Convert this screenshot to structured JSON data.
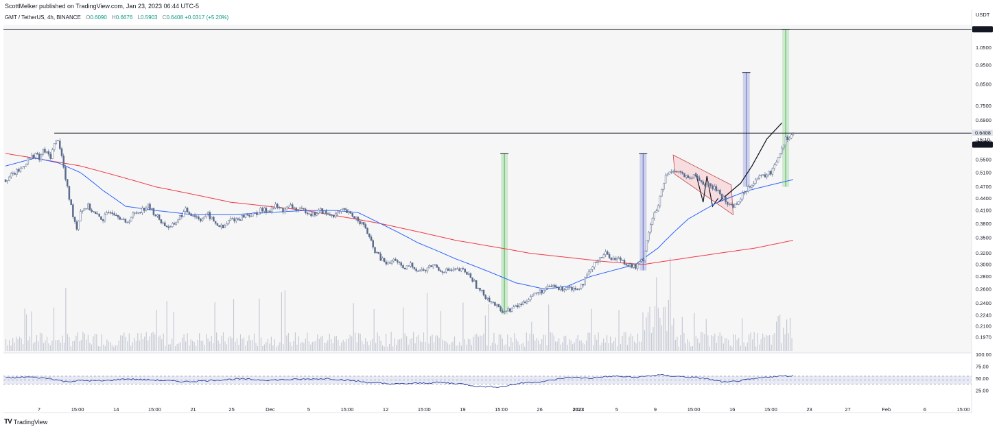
{
  "header": {
    "publisher_line": "ScottMelker published on TradingView.com, Jan 23, 2023 06:44 UTC-5",
    "symbol": "GMT / TetherUS, 4h, BINANCE",
    "ohlc": [
      {
        "k": "O",
        "v": "0.6090"
      },
      {
        "k": "H",
        "v": "0.6676"
      },
      {
        "k": "L",
        "v": "0.5903"
      },
      {
        "k": "C",
        "v": "0.6408"
      }
    ],
    "change": "+0.0317 (+5.20%)",
    "currency": "USDT"
  },
  "footer": {
    "logo_glyph": "TV",
    "brand": "TradingView"
  },
  "colors": {
    "up": "#089981",
    "candle": "#5b6b8c",
    "ma_fast": "#2962ff",
    "ma_slow": "#f23645",
    "volume": "#b2b8c8",
    "rsi": "#2a3f9d",
    "rsi_band": "#e8ebf6",
    "green_box": "#c8e6c9",
    "blue_box": "#c5cae9",
    "flag": "#f8d7da"
  },
  "chart_data": {
    "type": "candlestick",
    "title": "GMT / TetherUS, 4h, BINANCE",
    "y_axis": {
      "unit": "USDT",
      "scale": "log",
      "ticks": [
        "1.0500",
        "0.9500",
        "0.8500",
        "0.7500",
        "0.6900",
        "0.6100",
        "0.5500",
        "0.5100",
        "0.4700",
        "0.4400",
        "0.4100",
        "0.3800",
        "0.3500",
        "0.3200",
        "0.3000",
        "0.2800",
        "0.2600",
        "0.2400",
        "0.2240",
        "0.2100",
        "0.1970"
      ],
      "range": [
        0.188,
        1.19
      ]
    },
    "x_axis": {
      "ticks": [
        "7",
        "15:00",
        "14",
        "15:00",
        "21",
        "25",
        "Dec",
        "5",
        "15:00",
        "12",
        "15:00",
        "19",
        "15:00",
        "26",
        "2023",
        "5",
        "9",
        "15:00",
        "16",
        "15:00",
        "23",
        "27",
        "Feb",
        "6",
        "15:00"
      ]
    },
    "price_labels": [
      {
        "value": 1.1651,
        "text": "1.1651",
        "style": "black"
      },
      {
        "value": 0.6408,
        "text": "0.6408",
        "style": "light"
      },
      {
        "value": 0.6379,
        "text": "0.6379",
        "style": "black"
      }
    ],
    "countdown": "15:10",
    "horizontal_lines": [
      1.1651,
      0.6408
    ],
    "close_path": [
      [
        0,
        0.49
      ],
      [
        4,
        0.52
      ],
      [
        6,
        0.55
      ],
      [
        8,
        0.57
      ],
      [
        9,
        0.55
      ],
      [
        10,
        0.58
      ],
      [
        11,
        0.57
      ],
      [
        12,
        0.56
      ],
      [
        13,
        0.6
      ],
      [
        14,
        0.62
      ],
      [
        15,
        0.56
      ],
      [
        16,
        0.49
      ],
      [
        17,
        0.44
      ],
      [
        18,
        0.4
      ],
      [
        19,
        0.37
      ],
      [
        20,
        0.41
      ],
      [
        22,
        0.42
      ],
      [
        24,
        0.4
      ],
      [
        26,
        0.39
      ],
      [
        28,
        0.41
      ],
      [
        30,
        0.4
      ],
      [
        32,
        0.38
      ],
      [
        34,
        0.4
      ],
      [
        36,
        0.41
      ],
      [
        38,
        0.42
      ],
      [
        40,
        0.4
      ],
      [
        42,
        0.38
      ],
      [
        44,
        0.37
      ],
      [
        46,
        0.39
      ],
      [
        48,
        0.41
      ],
      [
        50,
        0.4
      ],
      [
        52,
        0.39
      ],
      [
        54,
        0.4
      ],
      [
        56,
        0.38
      ],
      [
        58,
        0.37
      ],
      [
        60,
        0.39
      ],
      [
        62,
        0.39
      ],
      [
        64,
        0.4
      ],
      [
        66,
        0.4
      ],
      [
        68,
        0.41
      ],
      [
        70,
        0.41
      ],
      [
        72,
        0.42
      ],
      [
        74,
        0.41
      ],
      [
        76,
        0.42
      ],
      [
        78,
        0.41
      ],
      [
        80,
        0.41
      ],
      [
        82,
        0.4
      ],
      [
        84,
        0.41
      ],
      [
        86,
        0.4
      ],
      [
        88,
        0.4
      ],
      [
        90,
        0.41
      ],
      [
        92,
        0.4
      ],
      [
        94,
        0.39
      ],
      [
        96,
        0.37
      ],
      [
        98,
        0.33
      ],
      [
        100,
        0.31
      ],
      [
        102,
        0.3
      ],
      [
        104,
        0.31
      ],
      [
        106,
        0.29
      ],
      [
        108,
        0.3
      ],
      [
        110,
        0.29
      ],
      [
        112,
        0.29
      ],
      [
        114,
        0.3
      ],
      [
        116,
        0.29
      ],
      [
        118,
        0.29
      ],
      [
        120,
        0.29
      ],
      [
        122,
        0.29
      ],
      [
        124,
        0.28
      ],
      [
        126,
        0.26
      ],
      [
        128,
        0.25
      ],
      [
        130,
        0.24
      ],
      [
        132,
        0.23
      ],
      [
        134,
        0.23
      ],
      [
        136,
        0.235
      ],
      [
        138,
        0.24
      ],
      [
        140,
        0.25
      ],
      [
        142,
        0.255
      ],
      [
        144,
        0.26
      ],
      [
        146,
        0.265
      ],
      [
        148,
        0.26
      ],
      [
        150,
        0.265
      ],
      [
        152,
        0.26
      ],
      [
        154,
        0.27
      ],
      [
        156,
        0.29
      ],
      [
        158,
        0.31
      ],
      [
        160,
        0.32
      ],
      [
        162,
        0.31
      ],
      [
        164,
        0.31
      ],
      [
        166,
        0.3
      ],
      [
        168,
        0.295
      ],
      [
        170,
        0.31
      ],
      [
        172,
        0.38
      ],
      [
        174,
        0.42
      ],
      [
        176,
        0.5
      ],
      [
        178,
        0.52
      ],
      [
        180,
        0.51
      ],
      [
        182,
        0.49
      ],
      [
        184,
        0.5
      ],
      [
        186,
        0.48
      ],
      [
        188,
        0.47
      ],
      [
        190,
        0.46
      ],
      [
        192,
        0.43
      ],
      [
        194,
        0.42
      ],
      [
        196,
        0.44
      ],
      [
        198,
        0.47
      ],
      [
        200,
        0.49
      ],
      [
        202,
        0.5
      ],
      [
        204,
        0.51
      ],
      [
        206,
        0.56
      ],
      [
        208,
        0.62
      ],
      [
        210,
        0.64
      ]
    ],
    "ma_fast_path": [
      [
        0,
        0.53
      ],
      [
        8,
        0.555
      ],
      [
        14,
        0.54
      ],
      [
        20,
        0.51
      ],
      [
        26,
        0.46
      ],
      [
        32,
        0.42
      ],
      [
        40,
        0.41
      ],
      [
        50,
        0.4
      ],
      [
        60,
        0.4
      ],
      [
        70,
        0.405
      ],
      [
        80,
        0.41
      ],
      [
        88,
        0.41
      ],
      [
        94,
        0.405
      ],
      [
        100,
        0.38
      ],
      [
        110,
        0.34
      ],
      [
        120,
        0.31
      ],
      [
        130,
        0.285
      ],
      [
        136,
        0.27
      ],
      [
        144,
        0.26
      ],
      [
        150,
        0.265
      ],
      [
        156,
        0.28
      ],
      [
        162,
        0.29
      ],
      [
        168,
        0.3
      ],
      [
        174,
        0.33
      ],
      [
        182,
        0.39
      ],
      [
        190,
        0.43
      ],
      [
        198,
        0.46
      ],
      [
        206,
        0.48
      ],
      [
        210,
        0.49
      ]
    ],
    "ma_slow_path": [
      [
        0,
        0.57
      ],
      [
        20,
        0.53
      ],
      [
        40,
        0.47
      ],
      [
        60,
        0.43
      ],
      [
        80,
        0.41
      ],
      [
        100,
        0.38
      ],
      [
        120,
        0.345
      ],
      [
        140,
        0.32
      ],
      [
        160,
        0.305
      ],
      [
        170,
        0.3
      ],
      [
        180,
        0.31
      ],
      [
        190,
        0.32
      ],
      [
        200,
        0.33
      ],
      [
        210,
        0.345
      ]
    ],
    "rsi": {
      "levels": [
        "100.00",
        "75.00",
        "50.00",
        "25.00"
      ],
      "band": [
        30,
        70
      ],
      "path": [
        [
          0,
          60
        ],
        [
          6,
          66
        ],
        [
          12,
          58
        ],
        [
          16,
          42
        ],
        [
          20,
          48
        ],
        [
          26,
          46
        ],
        [
          32,
          56
        ],
        [
          40,
          50
        ],
        [
          48,
          42
        ],
        [
          54,
          48
        ],
        [
          62,
          56
        ],
        [
          70,
          50
        ],
        [
          78,
          54
        ],
        [
          86,
          58
        ],
        [
          92,
          48
        ],
        [
          98,
          36
        ],
        [
          104,
          30
        ],
        [
          110,
          34
        ],
        [
          116,
          38
        ],
        [
          122,
          30
        ],
        [
          126,
          18
        ],
        [
          132,
          16
        ],
        [
          138,
          36
        ],
        [
          144,
          44
        ],
        [
          150,
          64
        ],
        [
          156,
          60
        ],
        [
          162,
          70
        ],
        [
          168,
          64
        ],
        [
          174,
          76
        ],
        [
          180,
          68
        ],
        [
          186,
          60
        ],
        [
          192,
          38
        ],
        [
          198,
          52
        ],
        [
          204,
          68
        ],
        [
          210,
          72
        ]
      ]
    }
  }
}
